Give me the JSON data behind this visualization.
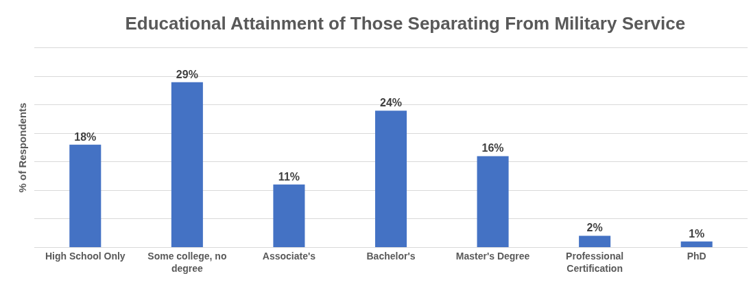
{
  "chart_data": {
    "type": "bar",
    "title": "Educational Attainment of Those Separating From Military Service",
    "ylabel": "% of Respondents",
    "categories": [
      "High School Only",
      "Some college, no degree",
      "Associate's",
      "Bachelor's",
      "Master's Degree",
      "Professional Certification",
      "PhD"
    ],
    "values": [
      18,
      29,
      11,
      24,
      16,
      2,
      1
    ],
    "value_labels": [
      "18%",
      "29%",
      "11%",
      "24%",
      "16%",
      "2%",
      "1%"
    ],
    "color": "#4472c4",
    "ylim": [
      0,
      35
    ],
    "yticks": [
      {
        "value": 0,
        "label": null
      },
      {
        "value": 5,
        "label": null
      },
      {
        "value": 10,
        "label": null
      },
      {
        "value": 15,
        "label": null
      },
      {
        "value": 20,
        "label": null
      },
      {
        "value": 25,
        "label": null
      },
      {
        "value": 30,
        "label": null
      },
      {
        "value": 35,
        "label": null
      }
    ],
    "grid": "y",
    "tick_labels": "x"
  }
}
